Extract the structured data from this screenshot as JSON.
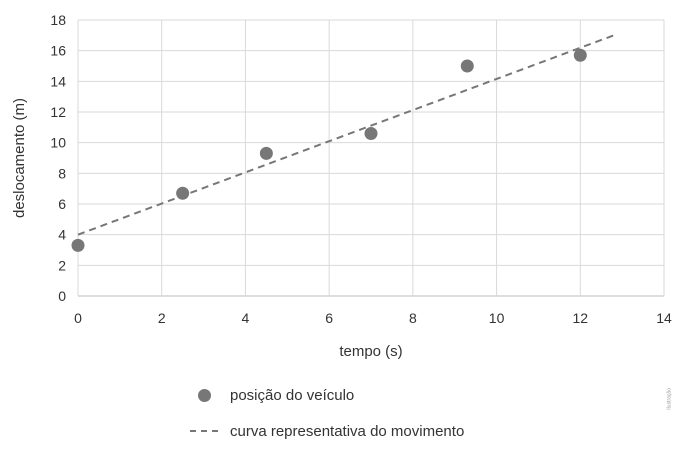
{
  "chart_data": {
    "type": "scatter",
    "xlabel": "tempo (s)",
    "ylabel": "deslocamento (m)",
    "xlim": [
      0,
      14
    ],
    "ylim": [
      0,
      18
    ],
    "xticks": [
      "0",
      "2",
      "4",
      "6",
      "8",
      "10",
      "12",
      "14"
    ],
    "yticks": [
      "0",
      "2",
      "4",
      "6",
      "8",
      "10",
      "12",
      "14",
      "16",
      "18"
    ],
    "grid": true,
    "legend_position": "bottom",
    "series": [
      {
        "name": "posição do veículo",
        "kind": "points",
        "color": "#777777",
        "x": [
          0,
          2.5,
          4.5,
          7,
          9.3,
          12
        ],
        "y": [
          3.3,
          6.7,
          9.3,
          10.6,
          15,
          15.7
        ]
      },
      {
        "name": "curva representativa do movimento",
        "kind": "dashed-line",
        "color": "#777777",
        "x": [
          0,
          12.8
        ],
        "y": [
          4,
          17
        ]
      }
    ]
  },
  "watermark": "Ilustração"
}
